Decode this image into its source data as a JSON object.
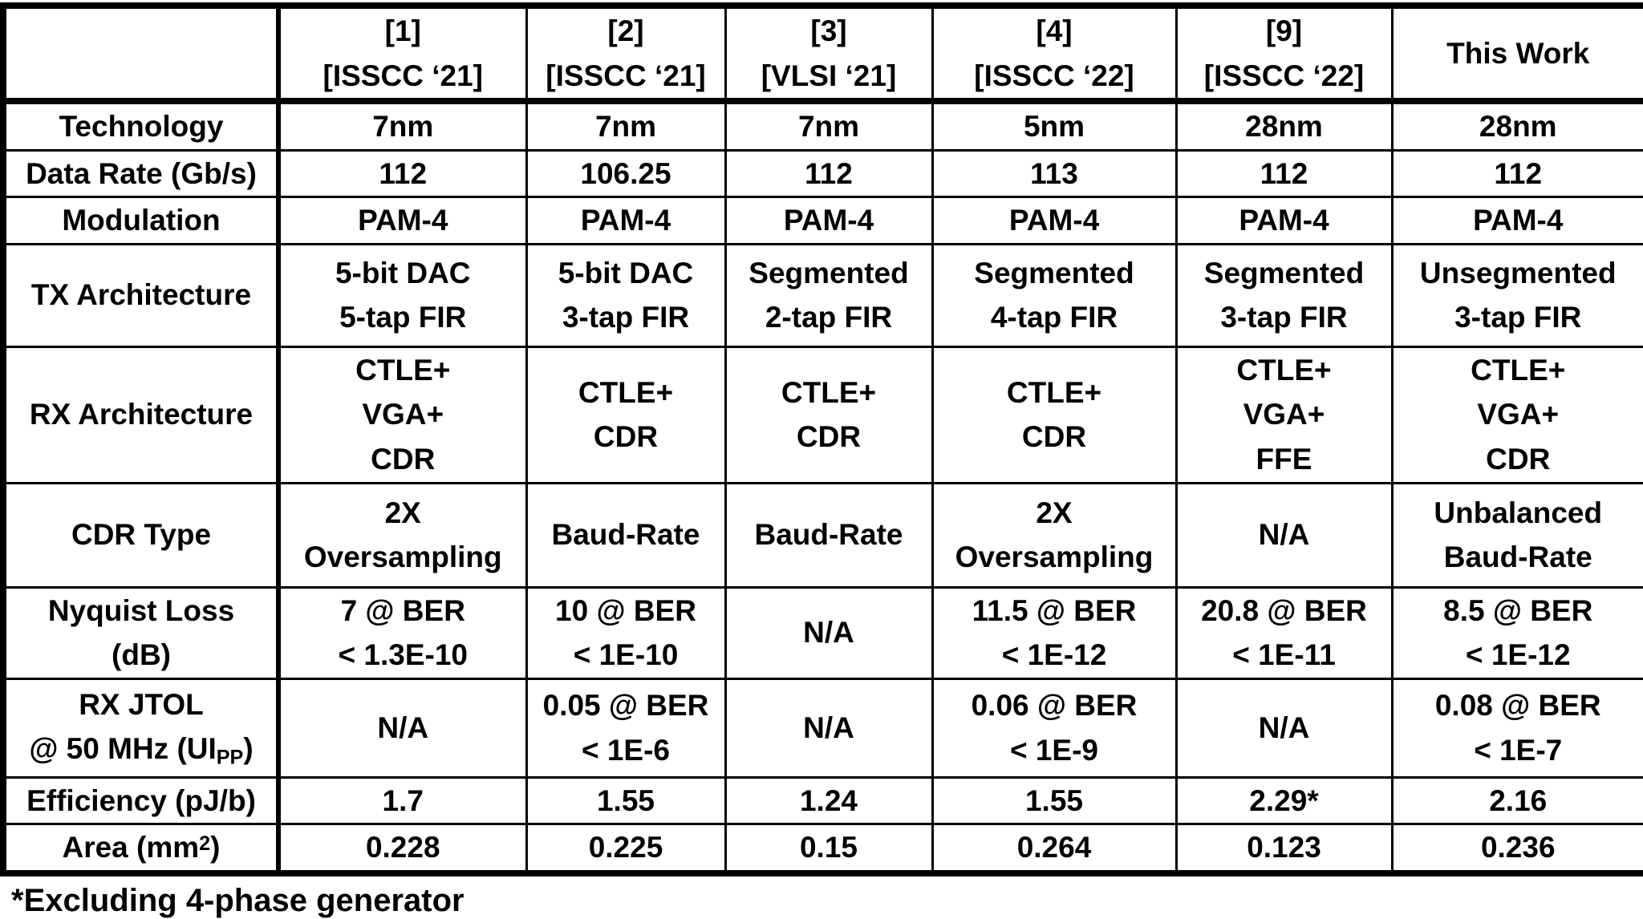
{
  "table": {
    "corner_label": "",
    "headers": [
      "[1]\n[ISSCC ‘21]",
      "[2]\n[ISSCC ‘21]",
      "[3]\n[VLSI ‘21]",
      "[4]\n[ISSCC ‘22]",
      "[9]\n[ISSCC ‘22]",
      "This Work"
    ],
    "rows": [
      {
        "label": "Technology",
        "values": [
          "7nm",
          "7nm",
          "7nm",
          "5nm",
          "28nm",
          "28nm"
        ]
      },
      {
        "label": "Data Rate (Gb/s)",
        "values": [
          "112",
          "106.25",
          "112",
          "113",
          "112",
          "112"
        ]
      },
      {
        "label": "Modulation",
        "values": [
          "PAM-4",
          "PAM-4",
          "PAM-4",
          "PAM-4",
          "PAM-4",
          "PAM-4"
        ]
      },
      {
        "label": "TX Architecture",
        "values": [
          "5-bit DAC\n5-tap FIR",
          "5-bit DAC\n3-tap FIR",
          "Segmented\n2-tap FIR",
          "Segmented\n4-tap FIR",
          "Segmented\n3-tap FIR",
          "Unsegmented\n3-tap FIR"
        ]
      },
      {
        "label": "RX Architecture",
        "values": [
          "CTLE+\nVGA+\nCDR",
          "CTLE+\nCDR",
          "CTLE+\nCDR",
          "CTLE+\nCDR",
          "CTLE+\nVGA+\nFFE",
          "CTLE+\nVGA+\nCDR"
        ]
      },
      {
        "label": "CDR Type",
        "values": [
          "2X\nOversampling",
          "Baud-Rate",
          "Baud-Rate",
          "2X\nOversampling",
          "N/A",
          "Unbalanced\nBaud-Rate"
        ]
      },
      {
        "label": "Nyquist Loss\n(dB)",
        "values": [
          "7 @ BER\n< 1.3E-10",
          "10 @ BER\n< 1E-10",
          "N/A",
          "11.5 @ BER\n< 1E-12",
          "20.8 @ BER\n< 1E-11",
          "8.5 @ BER\n< 1E-12"
        ]
      },
      {
        "label": "RX JTOL\n@ 50 MHz (UI~PP~)",
        "values": [
          "N/A",
          "0.05 @ BER\n< 1E-6",
          "N/A",
          "0.06 @ BER\n< 1E-9",
          "N/A",
          "0.08 @ BER\n< 1E-7"
        ]
      },
      {
        "label": "Efficiency (pJ/b)",
        "values": [
          "1.7",
          "1.55",
          "1.24",
          "1.55",
          "2.29*",
          "2.16"
        ]
      },
      {
        "label": "Area (mm^2^)",
        "values": [
          "0.228",
          "0.225",
          "0.15",
          "0.264",
          "0.123",
          "0.236"
        ]
      }
    ]
  },
  "footnote": "*Excluding 4-phase generator",
  "colors": {
    "text": "#000000",
    "background": "#ffffff",
    "border": "#000000"
  }
}
